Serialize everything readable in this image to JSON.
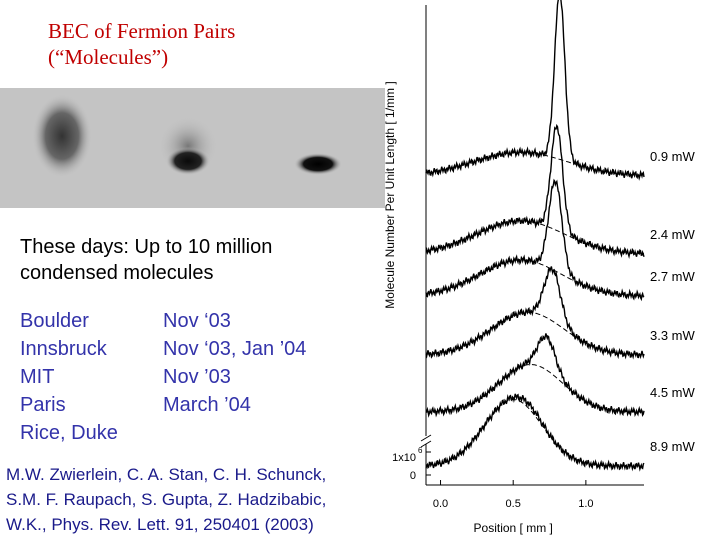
{
  "slide": {
    "title_line1": "BEC of Fermion Pairs",
    "title_line2": "(“Molecules”)",
    "summary_line1": "These days:  Up to 10 million",
    "summary_line2": "condensed molecules",
    "groups": [
      {
        "place": "Boulder",
        "date": "Nov ‘03"
      },
      {
        "place": "Innsbruck",
        "date": "Nov ‘03, Jan ’04"
      },
      {
        "place": "MIT",
        "date": "Nov ’03"
      },
      {
        "place": "Paris",
        "date": "March ’04"
      },
      {
        "place": "Rice, Duke",
        "date": ""
      }
    ],
    "citation_line1": "M.W. Zwierlein, C. A. Stan, C. H. Schunck,",
    "citation_line2": "S.M. F. Raupach, S. Gupta, Z. Hadzibabic,",
    "citation_line3": "W.K., Phys. Rev. Lett. 91, 250401 (2003)"
  },
  "absorption_image": {
    "background_color": "#c4c4c4",
    "cloud_color": "#111111",
    "clouds": [
      "diffuse thermal cloud",
      "bimodal cloud",
      "condensed cloud"
    ]
  },
  "chart_data": {
    "type": "line",
    "xlabel": "Position [ mm ]",
    "ylabel": "Molecule Number Per Unit Length [ 1/mm ]",
    "xlim": [
      -0.1,
      1.4
    ],
    "xticks": [
      0.0,
      0.5,
      1.0
    ],
    "xtick_labels": [
      "0.0",
      "0.5",
      "1.0"
    ],
    "ytick_labels": [
      "0",
      "1x10"
    ],
    "ytick_exponent": "6",
    "grid": false,
    "legend": "none",
    "line_style_fit": "dashed",
    "line_style_data": "solid",
    "series": [
      {
        "label": "0.9 mW",
        "peak_x": 0.82,
        "peak_height": 1.75,
        "peak_width": 0.035,
        "bg_x": 0.55,
        "bg_height": 0.25,
        "bg_width": 0.32
      },
      {
        "label": "2.4 mW",
        "peak_x": 0.8,
        "peak_height": 1.1,
        "peak_width": 0.04,
        "bg_x": 0.55,
        "bg_height": 0.35,
        "bg_width": 0.3
      },
      {
        "label": "2.7 mW",
        "peak_x": 0.79,
        "peak_height": 0.95,
        "peak_width": 0.045,
        "bg_x": 0.55,
        "bg_height": 0.38,
        "bg_width": 0.28
      },
      {
        "label": "3.3 mW",
        "peak_x": 0.77,
        "peak_height": 0.55,
        "peak_width": 0.055,
        "bg_x": 0.6,
        "bg_height": 0.45,
        "bg_width": 0.25
      },
      {
        "label": "4.5 mW",
        "peak_x": 0.73,
        "peak_height": 0.35,
        "peak_width": 0.06,
        "bg_x": 0.62,
        "bg_height": 0.5,
        "bg_width": 0.22
      },
      {
        "label": "8.9 mW",
        "peak_x": 0.6,
        "peak_height": 0.05,
        "peak_width": 0.08,
        "bg_x": 0.5,
        "bg_height": 0.7,
        "bg_width": 0.2
      }
    ]
  }
}
